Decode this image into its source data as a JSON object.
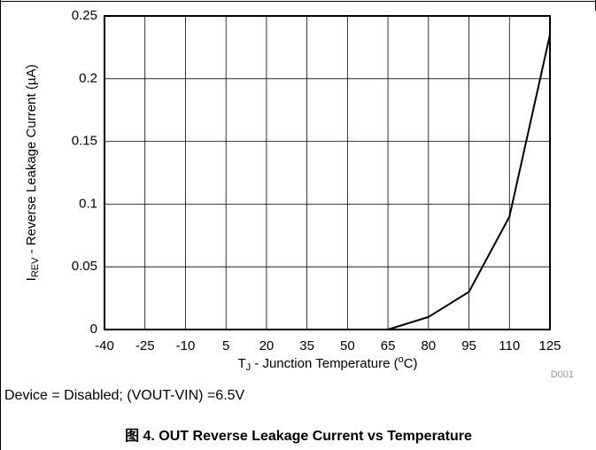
{
  "chart_data": {
    "type": "line",
    "x": [
      65,
      80,
      95,
      110,
      125
    ],
    "values": [
      0,
      0.01,
      0.03,
      0.09,
      0.235
    ],
    "color": "#000000",
    "xlim": [
      -40,
      125
    ],
    "xticks": [
      -40,
      -25,
      -10,
      5,
      20,
      35,
      50,
      65,
      80,
      95,
      110,
      125
    ],
    "ylim": [
      0,
      0.25
    ],
    "yticks": [
      0,
      0.05,
      0.1,
      0.15,
      0.2,
      0.25
    ],
    "grid": true,
    "y_label": {
      "main": "I",
      "sub": "REV",
      "rest": " - Reverse Leakage Current (µA)"
    },
    "x_label": {
      "main": "T",
      "sub": "J",
      "mid": " - Junction Temperature (",
      "sup": "o",
      "rest": "C)"
    },
    "figure_id": "D001",
    "note": "Device = Disabled; (VOUT-VIN) =6.5V",
    "caption": "图 4. OUT Reverse Leakage Current vs Temperature"
  }
}
